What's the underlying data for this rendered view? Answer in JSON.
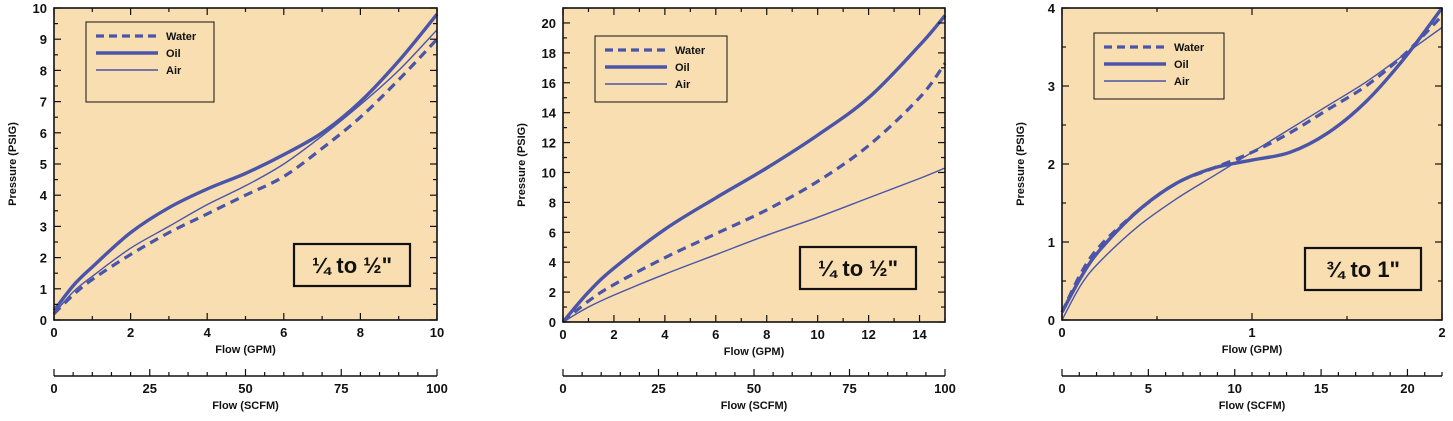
{
  "colors": {
    "plot_bg": "#f8deb0",
    "line": "#4a54a8",
    "axis": "#111111"
  },
  "chart_data": [
    {
      "type": "line",
      "size_label": "¼ to ½\"",
      "xlabel": "Flow (GPM)",
      "ylabel": "Pressure (PSIG)",
      "xlim": [
        0,
        10
      ],
      "ylim": [
        0,
        10
      ],
      "xticks": [
        "0",
        "2",
        "4",
        "6",
        "8",
        "10"
      ],
      "yticks": [
        "0",
        "1",
        "2",
        "3",
        "4",
        "5",
        "6",
        "7",
        "8",
        "9",
        "10"
      ],
      "secondary_axis": {
        "label": "Flow (SCFM)",
        "lim": [
          0,
          100
        ],
        "ticks": [
          "0",
          "25",
          "50",
          "75",
          "100"
        ]
      },
      "legend": [
        "Water",
        "Oil",
        "Air"
      ],
      "series": [
        {
          "name": "Water",
          "style": "dashed",
          "x": [
            0,
            0.5,
            1,
            2,
            3,
            4,
            5,
            6,
            7,
            8,
            9,
            10
          ],
          "y": [
            0.2,
            0.8,
            1.3,
            2.1,
            2.8,
            3.4,
            4.0,
            4.6,
            5.5,
            6.5,
            7.7,
            9.0
          ]
        },
        {
          "name": "Oil",
          "style": "thick",
          "x": [
            0,
            0.5,
            1,
            2,
            3,
            4,
            5,
            6,
            7,
            8,
            9,
            10
          ],
          "y": [
            0.3,
            1.1,
            1.7,
            2.8,
            3.6,
            4.2,
            4.7,
            5.3,
            6.0,
            7.0,
            8.3,
            9.8
          ]
        },
        {
          "name": "Air",
          "style": "thin",
          "x": [
            0,
            0.5,
            1,
            2,
            3,
            4,
            5,
            6,
            7,
            8,
            9,
            10
          ],
          "y": [
            0.2,
            0.9,
            1.4,
            2.3,
            3.0,
            3.7,
            4.3,
            5.0,
            5.9,
            6.9,
            8.0,
            9.3
          ]
        }
      ]
    },
    {
      "type": "line",
      "size_label": "¼ to ½\"",
      "xlabel": "Flow (GPM)",
      "ylabel": "Pressure (PSIG)",
      "xlim": [
        0,
        15
      ],
      "ylim": [
        0,
        21
      ],
      "xticks": [
        "0",
        "2",
        "4",
        "6",
        "8",
        "10",
        "12",
        "14"
      ],
      "yticks": [
        "0",
        "2",
        "4",
        "6",
        "8",
        "10",
        "12",
        "14",
        "16",
        "18",
        "20"
      ],
      "secondary_axis": {
        "label": "Flow (SCFM)",
        "lim": [
          0,
          100
        ],
        "ticks": [
          "0",
          "25",
          "50",
          "75",
          "100"
        ]
      },
      "legend": [
        "Water",
        "Oil",
        "Air"
      ],
      "series": [
        {
          "name": "Water",
          "style": "dashed",
          "x": [
            0,
            1,
            2,
            4,
            6,
            8,
            10,
            12,
            14,
            15
          ],
          "y": [
            0,
            1.4,
            2.5,
            4.3,
            5.9,
            7.5,
            9.4,
            11.8,
            15.0,
            17.3
          ]
        },
        {
          "name": "Oil",
          "style": "thick",
          "x": [
            0,
            1,
            2,
            4,
            6,
            8,
            10,
            12,
            14,
            15
          ],
          "y": [
            0,
            2.0,
            3.6,
            6.2,
            8.3,
            10.3,
            12.5,
            15.0,
            18.5,
            20.5
          ]
        },
        {
          "name": "Air",
          "style": "thin",
          "x": [
            0,
            1,
            2,
            4,
            6,
            8,
            10,
            12,
            14,
            15
          ],
          "y": [
            0,
            1.0,
            1.8,
            3.2,
            4.5,
            5.8,
            7.0,
            8.3,
            9.6,
            10.3
          ]
        }
      ]
    },
    {
      "type": "line",
      "size_label": "¾ to 1\"",
      "xlabel": "Flow (GPM)",
      "ylabel": "Pressure (PSIG)",
      "xlim": [
        0,
        2
      ],
      "ylim": [
        0,
        4
      ],
      "xticks": [
        "0",
        "1",
        "2"
      ],
      "yticks": [
        "0",
        "1",
        "2",
        "3",
        "4"
      ],
      "secondary_axis": {
        "label": "Flow (SCFM)",
        "lim": [
          0,
          22
        ],
        "ticks": [
          "0",
          "5",
          "10",
          "15",
          "20"
        ]
      },
      "legend": [
        "Water",
        "Oil",
        "Air"
      ],
      "series": [
        {
          "name": "Water",
          "style": "dashed",
          "x": [
            0,
            0.1,
            0.2,
            0.4,
            0.6,
            0.8,
            1.0,
            1.2,
            1.4,
            1.6,
            1.8,
            2.0
          ],
          "y": [
            0.1,
            0.6,
            0.95,
            1.4,
            1.75,
            1.95,
            2.15,
            2.4,
            2.7,
            3.0,
            3.4,
            3.9
          ]
        },
        {
          "name": "Oil",
          "style": "thick",
          "x": [
            0,
            0.1,
            0.2,
            0.4,
            0.6,
            0.8,
            1.0,
            1.2,
            1.4,
            1.6,
            1.8,
            2.0
          ],
          "y": [
            0.1,
            0.55,
            0.9,
            1.4,
            1.75,
            1.95,
            2.05,
            2.15,
            2.4,
            2.8,
            3.35,
            4.0
          ]
        },
        {
          "name": "Air",
          "style": "thin",
          "x": [
            0,
            0.1,
            0.2,
            0.4,
            0.6,
            0.8,
            1.0,
            1.2,
            1.4,
            1.6,
            1.8,
            2.0
          ],
          "y": [
            0,
            0.45,
            0.75,
            1.2,
            1.55,
            1.85,
            2.15,
            2.45,
            2.75,
            3.05,
            3.4,
            3.75
          ]
        }
      ]
    }
  ]
}
